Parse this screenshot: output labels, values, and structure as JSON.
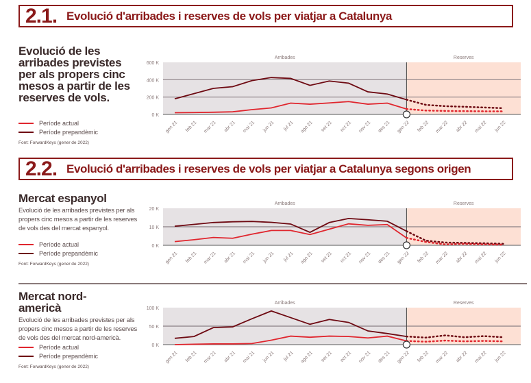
{
  "section1": {
    "number": "2.1.",
    "title": "Evolució d'arribades i reserves de vols per viatjar a Catalunya"
  },
  "section2": {
    "number": "2.2.",
    "title": "Evolució d'arribades i reserves de vols per viatjar a Catalunya segons origen"
  },
  "panel1": {
    "title": "Evolució de les arribades previstes per als propers cinc mesos a partir de les reserves de vols."
  },
  "panel2": {
    "title": "Mercat espanyol",
    "desc": "Evolució de les arribades previstes per als propers cinc mesos a partir de les reserves de vols des del mercat espanyol."
  },
  "panel3": {
    "title": "Mercat nord-americà",
    "desc": "Evolució de les arribades previstes per als propers cinc mesos a partir de les reserves de vols des del mercat nord-americà."
  },
  "legend": {
    "actual": "Període actual",
    "pre": "Període prepandèmic"
  },
  "source": "Font: ForwardKeys (gener de 2022)",
  "colors": {
    "brand": "#8b1a1a",
    "actual": "#e0262e",
    "pre": "#6e0a12",
    "arribades_bg": "#e6e2e4",
    "reserves_bg": "#fde0d4"
  },
  "chart_data": [
    {
      "type": "line",
      "region_labels": [
        "Arribades",
        "Reserves"
      ],
      "categories": [
        "gen 21",
        "feb 21",
        "mar 21",
        "abr 21",
        "mai 21",
        "jun 21",
        "jul 21",
        "ago 21",
        "set 21",
        "oct 21",
        "nov 21",
        "des 21",
        "gen 22",
        "feb 22",
        "mar 22",
        "abr 22",
        "mai 22",
        "jun 22"
      ],
      "yticks": [
        "0 K",
        "200 K",
        "400 K",
        "600 K"
      ],
      "ylim": [
        0,
        600
      ],
      "split_index": 12,
      "series": [
        {
          "name": "Període prepandèmic",
          "values": [
            180,
            240,
            300,
            320,
            390,
            425,
            415,
            335,
            385,
            360,
            260,
            235,
            170,
            110,
            95,
            88,
            80,
            72
          ]
        },
        {
          "name": "Període actual",
          "values": [
            20,
            22,
            25,
            30,
            55,
            75,
            130,
            118,
            132,
            148,
            118,
            130,
            62,
            45,
            40,
            38,
            36,
            35
          ]
        }
      ]
    },
    {
      "type": "line",
      "region_labels": [
        "Arribades",
        "Reserves"
      ],
      "categories": [
        "gen 21",
        "feb 21",
        "mar 21",
        "abr 21",
        "mai 21",
        "jun 21",
        "jul 21",
        "ago 21",
        "set 21",
        "oct 21",
        "nov 21",
        "des 21",
        "gen 22",
        "feb 22",
        "mar 22",
        "abr 22",
        "mai 22",
        "jun 22"
      ],
      "yticks": [
        "0 K",
        "10 K",
        "20 K"
      ],
      "ylim": [
        0,
        20
      ],
      "split_index": 12,
      "series": [
        {
          "name": "Període prepandèmic",
          "values": [
            10.3,
            11.3,
            12.3,
            12.7,
            12.9,
            12.4,
            11.5,
            7,
            12.3,
            14.5,
            13.8,
            13,
            7.6,
            2.5,
            1.5,
            1.3,
            1.1,
            0.8
          ]
        },
        {
          "name": "Període actual",
          "values": [
            2,
            3,
            4.2,
            3.8,
            6,
            8,
            8,
            5.8,
            8.7,
            11.6,
            10.8,
            11.2,
            4,
            1.8,
            0.5,
            0.8,
            0.5,
            0.3
          ]
        }
      ]
    },
    {
      "type": "line",
      "region_labels": [
        "Arribades",
        "Reserves"
      ],
      "categories": [
        "gen 21",
        "feb 21",
        "mar 21",
        "abr 21",
        "mai 21",
        "jun 21",
        "jul 21",
        "ago 21",
        "set 21",
        "oct 21",
        "nov 21",
        "des 21",
        "gen 22",
        "feb 22",
        "mar 22",
        "abr 22",
        "mai 22",
        "jun 22"
      ],
      "yticks": [
        "0 K",
        "50 K",
        "100 K"
      ],
      "ylim": [
        0,
        100
      ],
      "split_index": 12,
      "series": [
        {
          "name": "Període prepandèmic",
          "values": [
            17,
            22,
            46,
            48,
            70,
            91,
            73,
            55,
            68,
            60,
            37,
            30,
            22,
            19,
            25,
            20,
            23,
            20
          ]
        },
        {
          "name": "Període actual",
          "values": [
            0,
            1,
            2,
            2,
            3,
            12,
            23,
            20,
            23,
            22,
            18,
            23,
            10,
            8,
            11,
            9,
            10,
            9
          ]
        }
      ]
    }
  ]
}
